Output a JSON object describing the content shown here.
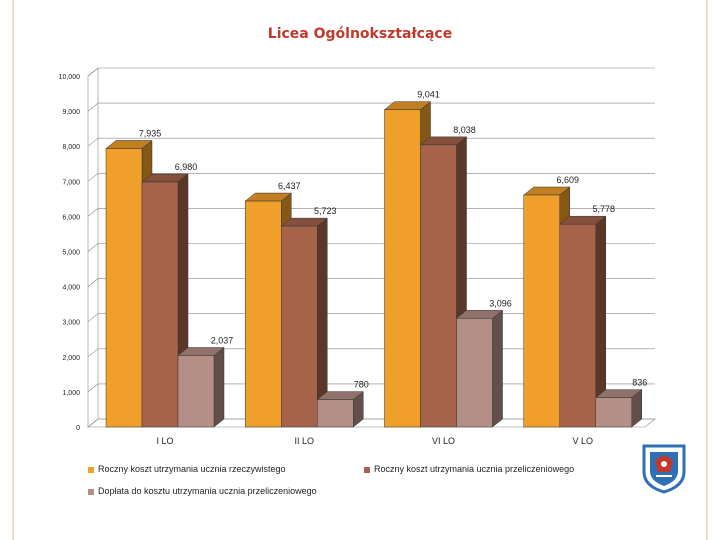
{
  "chart_data": {
    "type": "bar",
    "title": "Licea Ogólnokształcące",
    "xlabel": "",
    "ylabel": "",
    "categories": [
      "I LO",
      "II LO",
      "VI LO",
      "V LO"
    ],
    "ylim": [
      0,
      10000
    ],
    "yticks": [
      0,
      1000,
      2000,
      3000,
      4000,
      5000,
      6000,
      7000,
      8000,
      9000,
      10000
    ],
    "ytick_labels": [
      "0",
      "1,000",
      "2,000",
      "3,000",
      "4,000",
      "5,000",
      "6,000",
      "7,000",
      "8,000",
      "9,000",
      "10,000"
    ],
    "grid": true,
    "legend_position": "bottom",
    "series": [
      {
        "name": "Roczny koszt utrzymania ucznia rzeczywistego",
        "color": "#f0a02a",
        "values": [
          7935,
          6437,
          9041,
          6609
        ],
        "labels": [
          "7,935",
          "6,437",
          "9,041",
          "6,609"
        ]
      },
      {
        "name": "Roczny koszt utrzymania ucznia przeliczeniowego",
        "color": "#a5644a",
        "values": [
          6980,
          5723,
          8038,
          5778
        ],
        "labels": [
          "6,980",
          "5,723",
          "8,038",
          "5,778"
        ]
      },
      {
        "name": "Dopłata do kosztu utrzymania ucznia przeliczeniowego",
        "color": "#b48f85",
        "values": [
          2037,
          780,
          3096,
          836
        ],
        "labels": [
          "2,037",
          "780",
          "3,096",
          "836"
        ]
      }
    ]
  },
  "crest": {
    "name": "coat-of-arms",
    "colors": [
      "#2f6fb5",
      "#c0392b",
      "#ffffff"
    ]
  }
}
